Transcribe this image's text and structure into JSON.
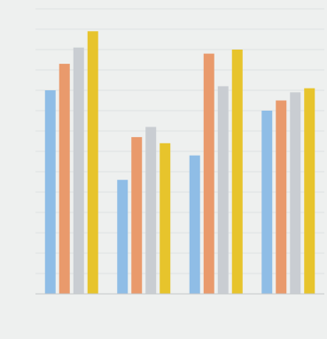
{
  "chart_data": {
    "type": "bar",
    "categories": [
      "",
      "",
      "",
      ""
    ],
    "series": [
      {
        "color": "#8fbde6",
        "values": [
          100,
          56,
          68,
          90
        ]
      },
      {
        "color": "#e99a6c",
        "values": [
          113,
          77,
          118,
          95
        ]
      },
      {
        "color": "#c9cdd2",
        "values": [
          121,
          82,
          102,
          99
        ]
      },
      {
        "color": "#e7c42c",
        "values": [
          129,
          74,
          120,
          101
        ]
      }
    ],
    "ylim": [
      0,
      140
    ],
    "grid": true,
    "legend_position": "bottom",
    "xlabel": "",
    "ylabel": "",
    "title": ""
  }
}
